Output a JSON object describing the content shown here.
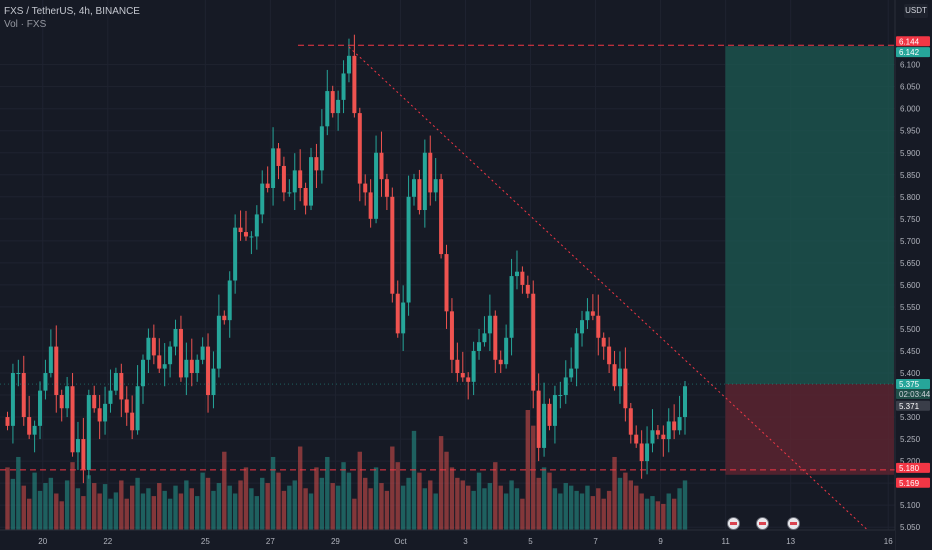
{
  "header": {
    "title": "FXS / TetherUS, 4h, BINANCE",
    "indicator": "Vol · FXS"
  },
  "currency": "USDT",
  "colors": {
    "up": "#26a69a",
    "down": "#ef5350",
    "background": "#161a25",
    "grid": "#1f2330",
    "text": "#b2b5be"
  },
  "chart_data": {
    "type": "candlestick",
    "y_range": [
      5.03,
      6.19
    ],
    "y_ticks": [
      "6.100",
      "6.050",
      "6.000",
      "5.950",
      "5.900",
      "5.850",
      "5.800",
      "5.750",
      "5.700",
      "5.650",
      "5.600",
      "5.550",
      "5.500",
      "5.450",
      "5.400",
      "5.350",
      "5.300",
      "5.250",
      "5.200",
      "5.150",
      "5.100",
      "5.050"
    ],
    "x_ticks": [
      {
        "label": "20",
        "bar": 6.5
      },
      {
        "label": "22",
        "bar": 18.5
      },
      {
        "label": "25",
        "bar": 36.5
      },
      {
        "label": "27",
        "bar": 48.5
      },
      {
        "label": "29",
        "bar": 60.5
      },
      {
        "label": "Oct",
        "bar": 72.5
      },
      {
        "label": "3",
        "bar": 84.5
      },
      {
        "label": "5",
        "bar": 96.5
      },
      {
        "label": "7",
        "bar": 108.5
      },
      {
        "label": "9",
        "bar": 120.5
      },
      {
        "label": "11",
        "bar": 132.5
      },
      {
        "label": "13",
        "bar": 144.5
      },
      {
        "label": "16",
        "bar": 162.5
      }
    ],
    "closes": [
      5.28,
      5.4,
      5.4,
      5.3,
      5.26,
      5.28,
      5.36,
      5.4,
      5.46,
      5.35,
      5.32,
      5.37,
      5.22,
      5.25,
      5.18,
      5.35,
      5.32,
      5.29,
      5.33,
      5.36,
      5.4,
      5.34,
      5.31,
      5.27,
      5.37,
      5.43,
      5.48,
      5.44,
      5.41,
      5.42,
      5.46,
      5.5,
      5.39,
      5.43,
      5.4,
      5.43,
      5.46,
      5.35,
      5.41,
      5.53,
      5.52,
      5.61,
      5.73,
      5.72,
      5.71,
      5.71,
      5.76,
      5.83,
      5.82,
      5.91,
      5.87,
      5.81,
      5.81,
      5.86,
      5.82,
      5.78,
      5.89,
      5.86,
      5.96,
      6.04,
      5.99,
      6.02,
      6.08,
      6.12,
      5.99,
      5.83,
      5.81,
      5.75,
      5.9,
      5.84,
      5.8,
      5.58,
      5.49,
      5.56,
      5.8,
      5.84,
      5.77,
      5.9,
      5.81,
      5.84,
      5.67,
      5.54,
      5.43,
      5.4,
      5.39,
      5.38,
      5.45,
      5.47,
      5.49,
      5.53,
      5.43,
      5.42,
      5.48,
      5.62,
      5.63,
      5.6,
      5.58,
      5.36,
      5.23,
      5.33,
      5.28,
      5.35,
      5.35,
      5.39,
      5.41,
      5.49,
      5.52,
      5.54,
      5.53,
      5.48,
      5.46,
      5.42,
      5.37,
      5.41,
      5.32,
      5.26,
      5.24,
      5.2,
      5.24,
      5.27,
      5.26,
      5.25,
      5.29,
      5.27,
      5.3,
      5.37
    ],
    "volumes": [
      120,
      98,
      140,
      85,
      60,
      110,
      75,
      90,
      100,
      70,
      55,
      95,
      130,
      80,
      65,
      105,
      90,
      70,
      88,
      60,
      72,
      95,
      60,
      85,
      100,
      70,
      80,
      65,
      90,
      75,
      60,
      85,
      70,
      95,
      80,
      65,
      110,
      100,
      75,
      90,
      150,
      85,
      70,
      95,
      120,
      80,
      65,
      100,
      90,
      140,
      110,
      75,
      85,
      95,
      160,
      80,
      70,
      120,
      100,
      140,
      90,
      85,
      130,
      110,
      60,
      150,
      100,
      80,
      120,
      90,
      75,
      160,
      130,
      85,
      100,
      190,
      110,
      80,
      95,
      70,
      180,
      150,
      120,
      100,
      95,
      85,
      75,
      110,
      80,
      90,
      130,
      85,
      70,
      95,
      80,
      60,
      230,
      200,
      100,
      120,
      110,
      80,
      70,
      90,
      85,
      75,
      70,
      85,
      65,
      80,
      60,
      75,
      140,
      100,
      110,
      95,
      85,
      70,
      60,
      65,
      55,
      50,
      70,
      60,
      80,
      95
    ],
    "resistance_level": 6.144,
    "support_level": 5.18,
    "trendline": {
      "from": {
        "bar": 63,
        "price": 6.14
      },
      "to": {
        "bar": 159,
        "price": 5.04
      }
    },
    "position": {
      "entry": 5.375,
      "target": 6.142,
      "stop": 5.169,
      "start_bar": 133,
      "end_bar": 163
    },
    "price_labels": {
      "resistance": "6.144",
      "target": "6.142",
      "last": "5.375",
      "countdown": "02:03:44",
      "marker": "5.371",
      "support": "5.180",
      "stop": "5.169"
    }
  }
}
